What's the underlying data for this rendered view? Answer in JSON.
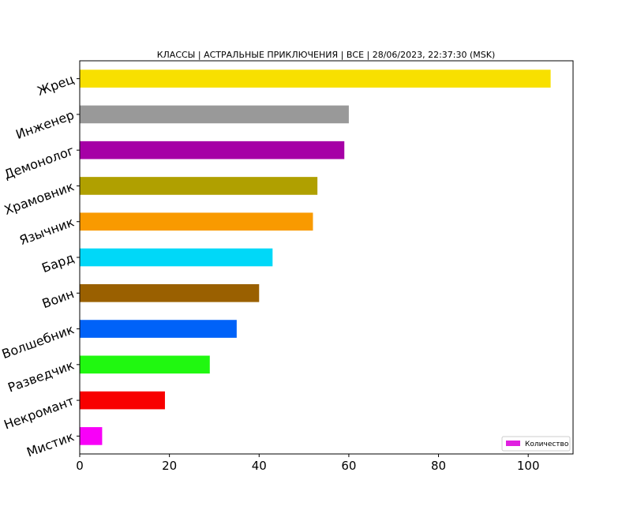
{
  "chart_data": {
    "type": "bar",
    "orientation": "horizontal",
    "title": "КЛАССЫ | АСТРАЛЬНЫЕ ПРИКЛЮЧЕНИЯ | ВСЕ | 28/06/2023, 22:37:30 (MSK)",
    "xlabel": "",
    "ylabel": "",
    "categories": [
      "Жрец",
      "Инженер",
      "Демонолог",
      "Храмовник",
      "Язычник",
      "Бард",
      "Воин",
      "Волшебник",
      "Разведчик",
      "Некромант",
      "Мистик"
    ],
    "values": [
      105,
      60,
      59,
      53,
      52,
      43,
      40,
      35,
      29,
      19,
      5
    ],
    "colors": [
      "#f8e000",
      "#999999",
      "#a600a6",
      "#b0a000",
      "#f99a00",
      "#00d8f8",
      "#9a6000",
      "#0062f8",
      "#20f810",
      "#f80000",
      "#f800f8"
    ],
    "xlim": [
      0,
      110
    ],
    "xticks": [
      0,
      20,
      40,
      60,
      80,
      100
    ],
    "grid": false,
    "legend": {
      "label": "Количество",
      "color": "#e020e0",
      "position": "lower-right"
    }
  }
}
